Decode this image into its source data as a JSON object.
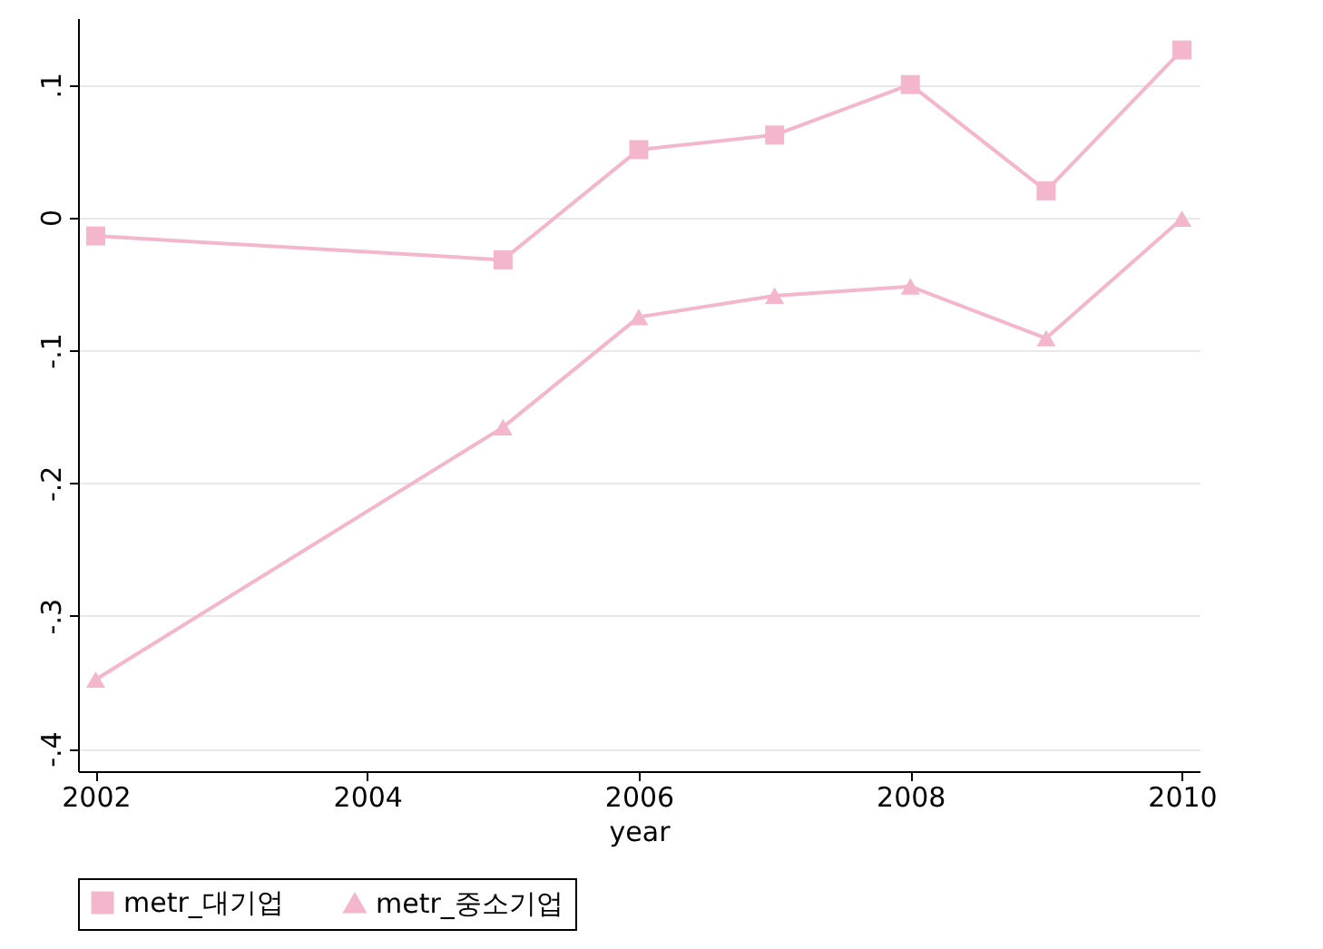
{
  "chart_data": {
    "type": "line",
    "xlabel": "year",
    "x": [
      2002,
      2005,
      2006,
      2007,
      2008,
      2009,
      2010
    ],
    "series": [
      {
        "name": "metr_대기업",
        "color": "#f4b6cc",
        "marker": "square",
        "values": [
          -0.014,
          -0.032,
          0.051,
          0.062,
          0.1,
          0.02,
          0.126
        ]
      },
      {
        "name": "metr_중소기업",
        "color": "#f4b6cc",
        "marker": "triangle",
        "values": [
          -0.348,
          -0.158,
          -0.075,
          -0.059,
          -0.052,
          -0.091,
          -0.001
        ]
      }
    ],
    "xlim": [
      2001.87,
      2010.13
    ],
    "xticks": [
      2002,
      2004,
      2006,
      2008,
      2010
    ],
    "ylim": [
      -0.417,
      0.15
    ],
    "yticks": [
      {
        "value": -0.4,
        "label": "-.4"
      },
      {
        "value": -0.3,
        "label": "-.3"
      },
      {
        "value": -0.2,
        "label": "-.2"
      },
      {
        "value": -0.1,
        "label": "-.1"
      },
      {
        "value": 0,
        "label": "0"
      },
      {
        "value": 0.1,
        "label": ".1"
      }
    ],
    "grid": "y",
    "legend": "bottom",
    "line_style": "solid"
  }
}
